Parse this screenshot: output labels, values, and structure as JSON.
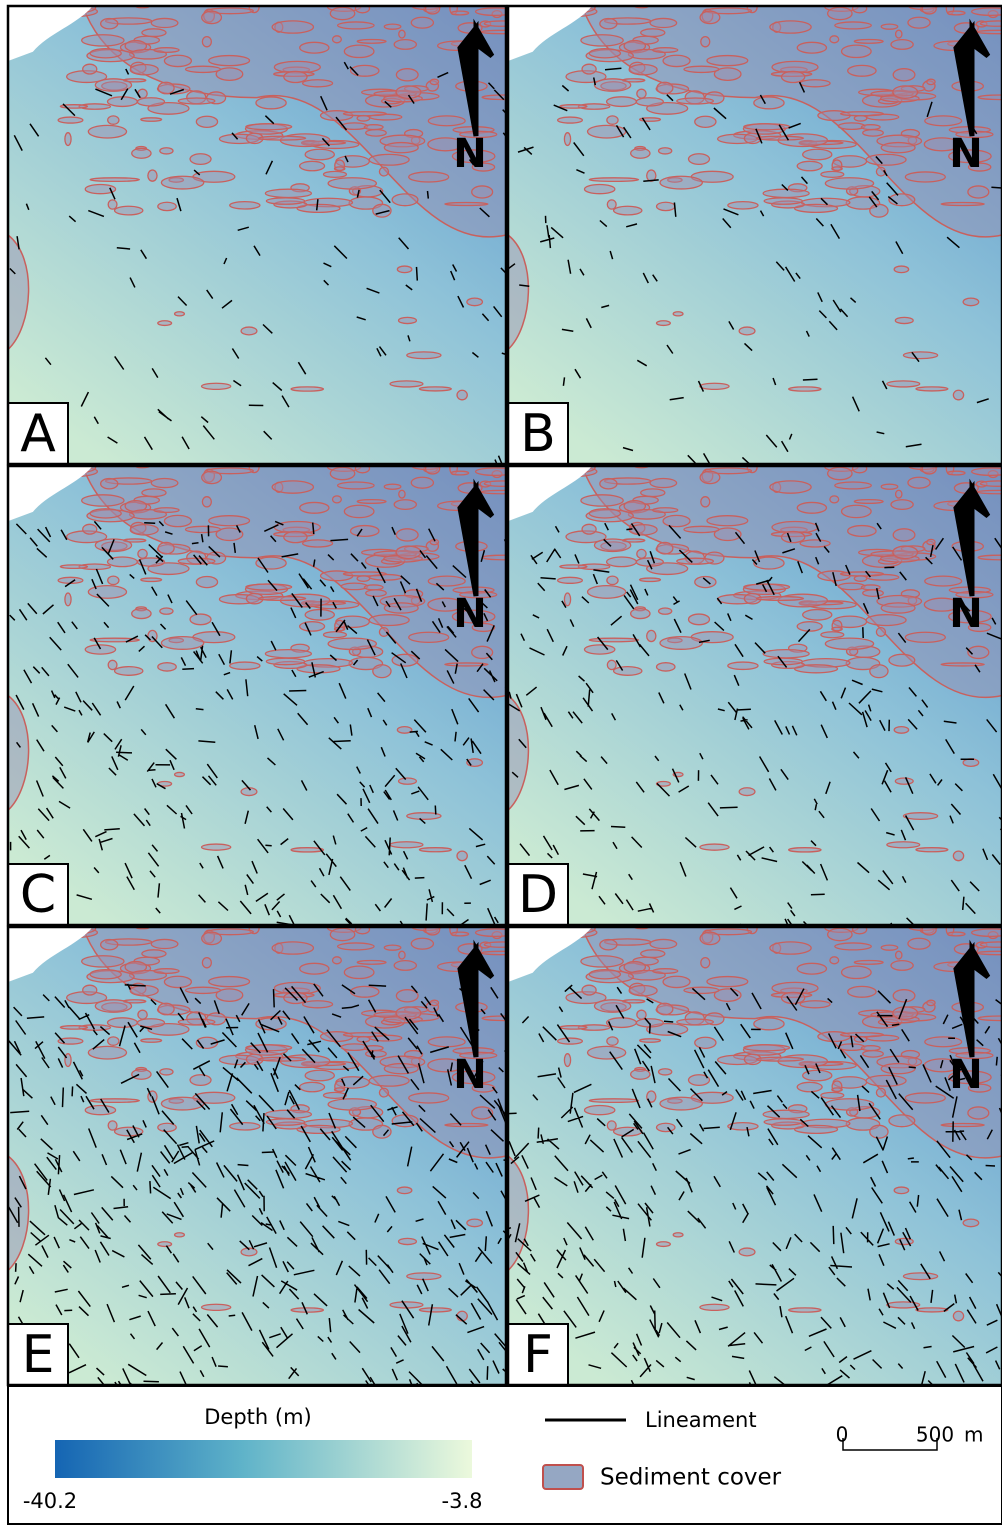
{
  "panels": [
    {
      "label": "A"
    },
    {
      "label": "B"
    },
    {
      "label": "C"
    },
    {
      "label": "D"
    },
    {
      "label": "E"
    },
    {
      "label": "F"
    }
  ],
  "north": "N",
  "legend": {
    "depth_title": "Depth (m)",
    "depth_min": -40.2,
    "depth_max": -3.8,
    "lineament": "Lineament",
    "sediment": "Sediment cover",
    "scale_start": 0,
    "scale_end": 500,
    "scale_unit": "m"
  }
}
